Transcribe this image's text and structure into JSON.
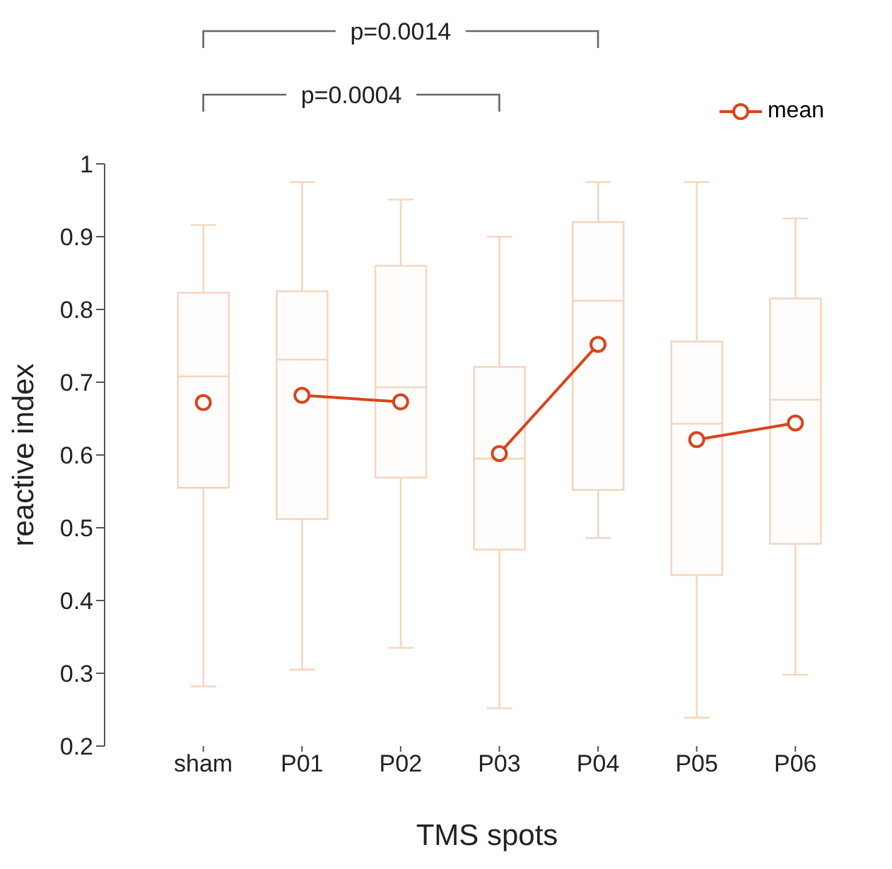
{
  "chart_data": {
    "type": "box",
    "xlabel": "TMS spots",
    "ylabel": "reactive index",
    "categories": [
      "sham",
      "P01",
      "P02",
      "P03",
      "P04",
      "P05",
      "P06"
    ],
    "ylim": [
      0.2,
      1
    ],
    "yticks": [
      0.2,
      0.3,
      0.4,
      0.5,
      0.6,
      0.7,
      0.8,
      0.9,
      1
    ],
    "legend": "top right",
    "marker": "circle",
    "annotations": [
      "p=0.0014",
      "p=0.0004"
    ],
    "series": [
      {
        "type": "box",
        "color": "#f5d6c0",
        "boxes": [
          {
            "low": 0.282,
            "q1": 0.555,
            "median": 0.708,
            "q3": 0.823,
            "high": 0.916
          },
          {
            "low": 0.305,
            "q1": 0.512,
            "median": 0.731,
            "q3": 0.825,
            "high": 0.975
          },
          {
            "low": 0.335,
            "q1": 0.569,
            "median": 0.693,
            "q3": 0.86,
            "high": 0.951
          },
          {
            "low": 0.252,
            "q1": 0.47,
            "median": 0.595,
            "q3": 0.721,
            "high": 0.9
          },
          {
            "low": 0.486,
            "q1": 0.552,
            "median": 0.812,
            "q3": 0.92,
            "high": 0.975
          },
          {
            "low": 0.239,
            "q1": 0.435,
            "median": 0.643,
            "q3": 0.756,
            "high": 0.975
          },
          {
            "low": 0.298,
            "q1": 0.478,
            "median": 0.676,
            "q3": 0.815,
            "high": 0.925
          }
        ]
      },
      {
        "type": "line",
        "name": "mean",
        "color": "#d9441c",
        "values": [
          0.672,
          null,
          null,
          null,
          null,
          null,
          null
        ]
      },
      {
        "type": "line",
        "color": "#d9441c",
        "values": [
          null,
          0.682,
          0.673,
          null,
          null,
          null,
          null
        ]
      },
      {
        "type": "line",
        "color": "#d9441c",
        "values": [
          null,
          null,
          null,
          0.602,
          0.752,
          null,
          null
        ]
      },
      {
        "type": "line",
        "color": "#d9441c",
        "values": [
          null,
          null,
          null,
          null,
          null,
          0.621,
          0.644
        ]
      }
    ]
  }
}
